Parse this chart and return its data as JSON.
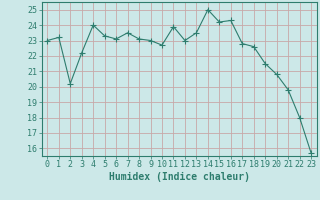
{
  "x": [
    0,
    1,
    2,
    3,
    4,
    5,
    6,
    7,
    8,
    9,
    10,
    11,
    12,
    13,
    14,
    15,
    16,
    17,
    18,
    19,
    20,
    21,
    22,
    23
  ],
  "y": [
    23.0,
    23.2,
    20.2,
    22.2,
    24.0,
    23.3,
    23.1,
    23.5,
    23.1,
    23.0,
    22.7,
    23.9,
    23.0,
    23.5,
    25.0,
    24.2,
    24.3,
    22.8,
    22.6,
    21.5,
    20.8,
    19.8,
    18.0,
    15.7
  ],
  "line_color": "#2e7d6e",
  "marker": "+",
  "marker_size": 4,
  "bg_color": "#cce8e8",
  "grid_color_h": "#c8a8a8",
  "grid_color_v": "#c8a8a8",
  "xlabel": "Humidex (Indice chaleur)",
  "xlim": [
    -0.5,
    23.5
  ],
  "ylim": [
    15.5,
    25.5
  ],
  "yticks": [
    16,
    17,
    18,
    19,
    20,
    21,
    22,
    23,
    24,
    25
  ],
  "xticks": [
    0,
    1,
    2,
    3,
    4,
    5,
    6,
    7,
    8,
    9,
    10,
    11,
    12,
    13,
    14,
    15,
    16,
    17,
    18,
    19,
    20,
    21,
    22,
    23
  ],
  "tick_color": "#2e7d6e",
  "label_color": "#2e7d6e",
  "spine_color": "#2e7d6e",
  "xlabel_fontsize": 7,
  "tick_fontsize": 6,
  "linewidth": 0.8,
  "marker_linewidth": 0.8
}
